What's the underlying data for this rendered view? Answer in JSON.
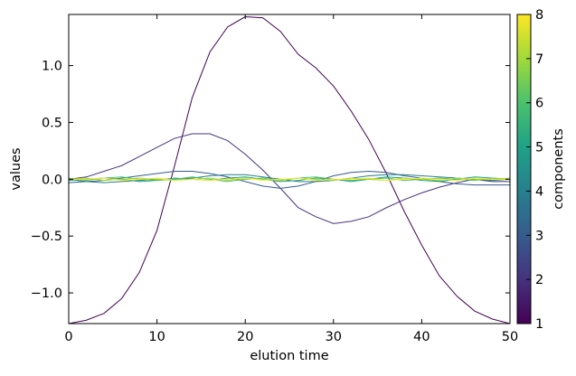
{
  "chart_data": {
    "type": "line",
    "title": "",
    "xlabel": "elution time",
    "ylabel": "values",
    "xlim": [
      0,
      50
    ],
    "ylim": [
      -1.27,
      1.45
    ],
    "xticks": [
      0,
      10,
      20,
      30,
      40,
      50
    ],
    "yticks": [
      -1.0,
      -0.5,
      0.0,
      0.5,
      1.0
    ],
    "xtick_labels": [
      "0",
      "10",
      "20",
      "30",
      "40",
      "50"
    ],
    "ytick_labels": [
      "−1.0",
      "−0.5",
      "0.0",
      "0.5",
      "1.0"
    ],
    "grid": false,
    "colormap": "viridis",
    "colorbar": {
      "label": "components",
      "range": [
        1,
        8
      ],
      "ticks": [
        1,
        2,
        3,
        4,
        5,
        6,
        7,
        8
      ],
      "tick_labels": [
        "1",
        "2",
        "3",
        "4",
        "5",
        "6",
        "7",
        "8"
      ]
    },
    "x": [
      0,
      2,
      4,
      6,
      8,
      10,
      12,
      14,
      16,
      18,
      20,
      22,
      24,
      26,
      28,
      30,
      32,
      34,
      36,
      38,
      40,
      42,
      44,
      46,
      48,
      50
    ],
    "series": [
      {
        "component": 1,
        "color": "#440154",
        "values": [
          -1.27,
          -1.24,
          -1.18,
          -1.05,
          -0.82,
          -0.45,
          0.12,
          0.72,
          1.12,
          1.34,
          1.43,
          1.42,
          1.3,
          1.1,
          0.98,
          0.82,
          0.6,
          0.35,
          0.05,
          -0.28,
          -0.58,
          -0.85,
          -1.03,
          -1.16,
          -1.23,
          -1.27
        ]
      },
      {
        "component": 2,
        "color": "#46327e",
        "values": [
          0.0,
          0.02,
          0.07,
          0.12,
          0.2,
          0.28,
          0.36,
          0.4,
          0.4,
          0.34,
          0.22,
          0.08,
          -0.08,
          -0.25,
          -0.33,
          -0.39,
          -0.37,
          -0.33,
          -0.25,
          -0.18,
          -0.12,
          -0.07,
          -0.03,
          0.0,
          -0.02,
          -0.02
        ]
      },
      {
        "component": 3,
        "color": "#365c8d",
        "values": [
          -0.03,
          -0.02,
          -0.01,
          0.01,
          0.03,
          0.05,
          0.07,
          0.07,
          0.05,
          0.02,
          -0.02,
          -0.06,
          -0.08,
          -0.06,
          -0.02,
          0.03,
          0.06,
          0.07,
          0.06,
          0.03,
          0.01,
          -0.02,
          -0.04,
          -0.05,
          -0.05,
          -0.05
        ]
      },
      {
        "component": 4,
        "color": "#277f8e",
        "values": [
          0.0,
          -0.02,
          -0.03,
          -0.02,
          -0.01,
          0.0,
          0.0,
          0.01,
          0.03,
          0.04,
          0.04,
          0.02,
          0.0,
          -0.02,
          -0.02,
          -0.01,
          0.01,
          0.03,
          0.04,
          0.04,
          0.03,
          0.02,
          0.01,
          0.0,
          -0.01,
          0.0
        ]
      },
      {
        "component": 5,
        "color": "#1fa187",
        "values": [
          -0.01,
          0.0,
          0.01,
          0.0,
          -0.02,
          -0.01,
          0.01,
          0.0,
          -0.01,
          0.01,
          0.02,
          0.0,
          -0.02,
          -0.01,
          0.01,
          0.0,
          -0.02,
          0.0,
          0.02,
          0.01,
          -0.01,
          -0.02,
          0.0,
          0.02,
          0.01,
          0.0
        ]
      },
      {
        "component": 6,
        "color": "#4ac16d",
        "values": [
          0.01,
          -0.01,
          0.01,
          0.02,
          0.0,
          -0.01,
          0.0,
          0.02,
          0.0,
          -0.02,
          0.0,
          0.01,
          -0.01,
          0.01,
          0.02,
          0.0,
          -0.01,
          0.0,
          0.01,
          -0.01,
          0.0,
          0.01,
          0.0,
          -0.01,
          0.01,
          0.0
        ]
      },
      {
        "component": 7,
        "color": "#a0da39",
        "values": [
          0.0,
          0.01,
          -0.01,
          0.0,
          0.01,
          0.0,
          -0.01,
          0.0,
          0.01,
          -0.01,
          0.01,
          0.0,
          -0.01,
          0.01,
          0.0,
          -0.01,
          0.01,
          0.0,
          -0.01,
          0.01,
          0.0,
          -0.01,
          0.01,
          0.0,
          0.0,
          0.01
        ]
      },
      {
        "component": 8,
        "color": "#fde725",
        "values": [
          0.0,
          0.0,
          0.01,
          -0.01,
          0.0,
          0.01,
          -0.01,
          0.0,
          -0.01,
          0.0,
          0.01,
          -0.01,
          0.0,
          0.01,
          -0.01,
          0.0,
          0.0,
          0.01,
          -0.01,
          0.0,
          0.01,
          0.0,
          -0.01,
          0.01,
          0.0,
          0.0
        ]
      }
    ]
  }
}
